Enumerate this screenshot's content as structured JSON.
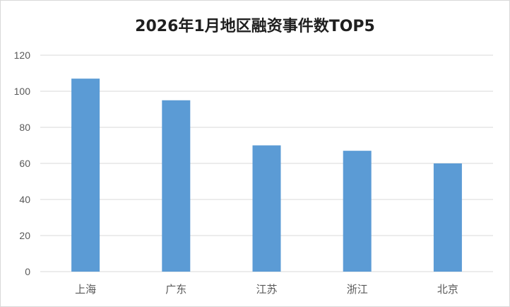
{
  "chart_data": {
    "type": "bar",
    "title": "2026年1月地区融资事件数TOP5",
    "categories": [
      "上海",
      "广东",
      "江苏",
      "浙江",
      "北京"
    ],
    "values": [
      107,
      95,
      70,
      67,
      60
    ],
    "ylim": [
      0,
      120
    ],
    "yticks": [
      0,
      20,
      40,
      60,
      80,
      100,
      120
    ],
    "xlabel": "",
    "ylabel": "",
    "grid": true,
    "legend": "none",
    "bar_color": "#5b9bd5",
    "grid_color": "#d9d9d9"
  }
}
